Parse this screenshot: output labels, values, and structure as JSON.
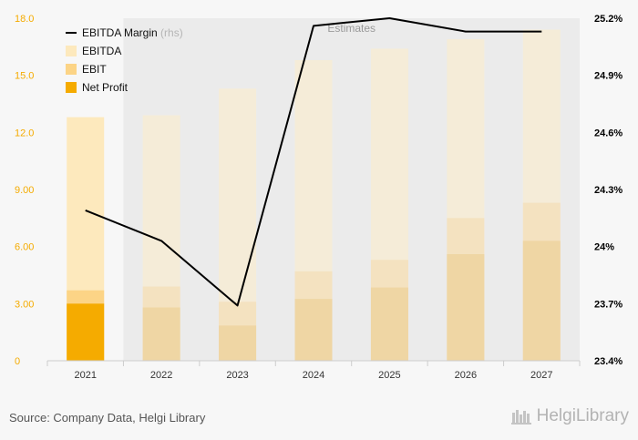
{
  "chart_data": {
    "type": "bar",
    "categories": [
      "2021",
      "2022",
      "2023",
      "2024",
      "2025",
      "2026",
      "2027"
    ],
    "estimates_label": "Estimates",
    "estimates_start_category": "2022",
    "series": [
      {
        "name": "EBITDA",
        "values": [
          12.8,
          12.9,
          14.3,
          15.8,
          16.4,
          16.9,
          17.4
        ]
      },
      {
        "name": "EBIT",
        "values": [
          3.7,
          3.9,
          3.1,
          4.7,
          5.3,
          7.5,
          8.3
        ]
      },
      {
        "name": "Net Profit",
        "values": [
          3.0,
          2.8,
          1.85,
          3.25,
          3.85,
          5.6,
          6.3
        ]
      },
      {
        "name": "EBITDA Margin",
        "name_suffix": "(rhs)",
        "axis": "right",
        "values": [
          24.19,
          24.03,
          23.69,
          25.16,
          25.2,
          25.13,
          25.13
        ]
      }
    ],
    "ylim": [
      0,
      18
    ],
    "y_ticks": [
      "0",
      "3.00",
      "6.00",
      "9.00",
      "12.0",
      "15.0",
      "18.0"
    ],
    "y_right_lim": [
      23.4,
      25.2
    ],
    "y_right_ticks": [
      "23.4%",
      "23.7%",
      "24%",
      "24.3%",
      "24.6%",
      "24.9%",
      "25.2%"
    ],
    "legend_position": "top-left",
    "colors": {
      "ebitda": "#fde9bd",
      "ebitda_estimate": "#f5ecd8",
      "ebit": "#fcd486",
      "ebit_estimate": "#f4e2c0",
      "net_profit": "#f5ab00",
      "net_profit_estimate": "#efd6a4",
      "margin_line": "#000000",
      "estimates_shading": "#ebebeb",
      "plot_background": "#f7f7f7",
      "axis_text_left": "#f5ab00",
      "axis_text_right": "#000000"
    }
  },
  "footer": {
    "source": "Source: Company Data, Helgi Library",
    "brand": "HelgiLibrary"
  }
}
